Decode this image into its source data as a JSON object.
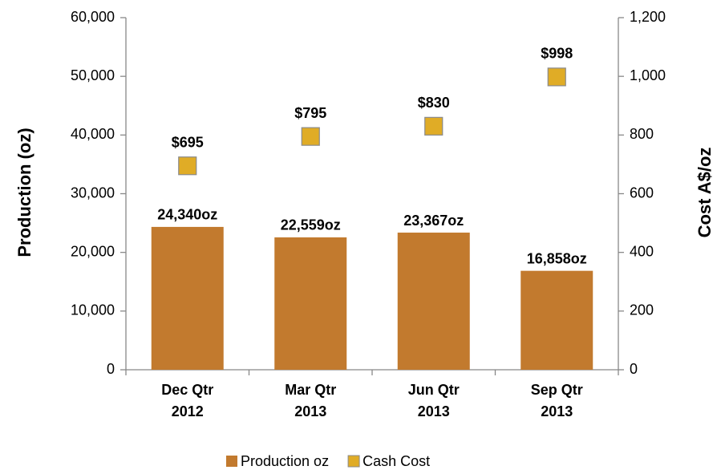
{
  "chart_data": {
    "type": "bar",
    "categories": [
      [
        "Dec Qtr",
        "2012"
      ],
      [
        "Mar Qtr",
        "2013"
      ],
      [
        "Jun Qtr",
        "2013"
      ],
      [
        "Sep Qtr",
        "2013"
      ]
    ],
    "series": [
      {
        "name": "Production oz",
        "type": "bar",
        "color": "#c27a2e",
        "values": [
          24340,
          22559,
          23367,
          16858
        ],
        "value_labels": [
          "24,340oz",
          "22,559oz",
          "23,367oz",
          "16,858oz"
        ]
      },
      {
        "name": "Cash Cost",
        "type": "scatter",
        "axis": "y2",
        "color": "#e0ac26",
        "values": [
          695,
          795,
          830,
          998
        ],
        "value_labels": [
          "$695",
          "$795",
          "$830",
          "$998"
        ]
      }
    ],
    "ylabel": "Production (oz)",
    "y2label": "Cost  A$/oz",
    "ylim": [
      0,
      60000
    ],
    "yticks": [
      {
        "value": 0,
        "label": "0"
      },
      {
        "value": 10000,
        "label": "10,000"
      },
      {
        "value": 20000,
        "label": "20,000"
      },
      {
        "value": 30000,
        "label": "30,000"
      },
      {
        "value": 40000,
        "label": "40,000"
      },
      {
        "value": 50000,
        "label": "50,000"
      },
      {
        "value": 60000,
        "label": "60,000"
      }
    ],
    "y2lim": [
      0,
      1200
    ],
    "y2ticks": [
      0,
      200,
      400,
      600,
      800,
      {
        "value": 1000,
        "label": "1,000"
      },
      {
        "value": 1200,
        "label": "1,200"
      }
    ],
    "grid": false,
    "legend": "bottom"
  }
}
